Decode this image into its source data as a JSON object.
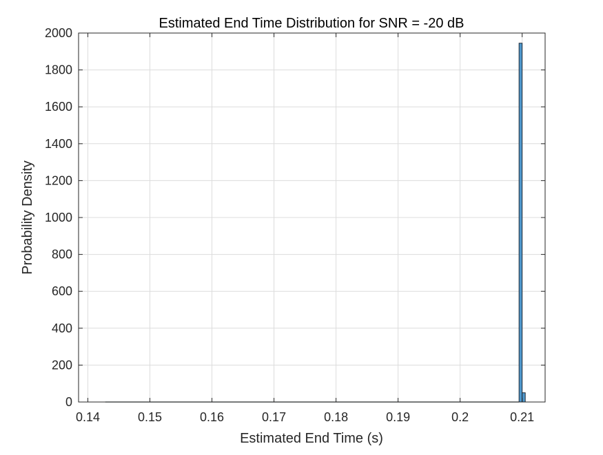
{
  "chart_data": {
    "type": "bar",
    "title": "Estimated End Time Distribution for SNR = -20 dB",
    "xlabel": "Estimated End Time (s)",
    "ylabel": "Probability Density",
    "xlim": [
      0.1385,
      0.2137
    ],
    "ylim": [
      0,
      2000
    ],
    "xticks": [
      0.14,
      0.15,
      0.16,
      0.17,
      0.18,
      0.19,
      0.2,
      0.21
    ],
    "xtick_labels": [
      "0.14",
      "0.15",
      "0.16",
      "0.17",
      "0.18",
      "0.19",
      "0.2",
      "0.21"
    ],
    "yticks": [
      0,
      200,
      400,
      600,
      800,
      1000,
      1200,
      1400,
      1600,
      1800,
      2000
    ],
    "ytick_labels": [
      "0",
      "200",
      "400",
      "600",
      "800",
      "1000",
      "1200",
      "1400",
      "1600",
      "1800",
      "2000"
    ],
    "grid": true,
    "bar_color": "#4f97cb",
    "bar_edge_color": "#1f2a36",
    "baseline": {
      "x_from": 0.1428,
      "x_to": 0.2095
    },
    "bins": [
      {
        "x0": 0.2095,
        "x1": 0.21,
        "value": 1945
      },
      {
        "x0": 0.21,
        "x1": 0.2105,
        "value": 50
      }
    ]
  }
}
